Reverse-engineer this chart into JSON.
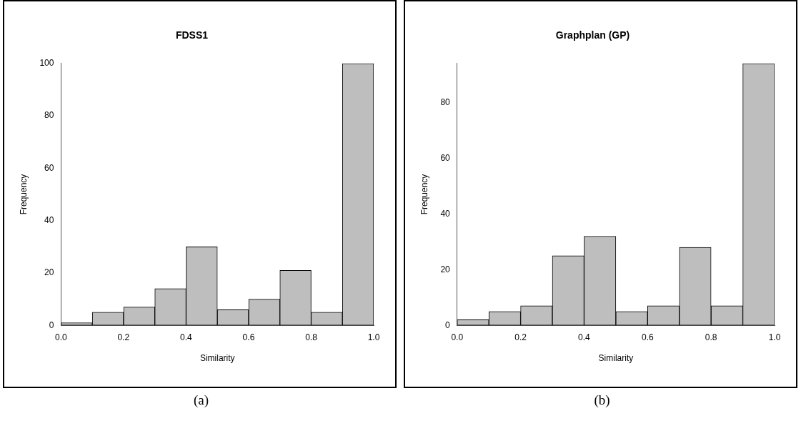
{
  "chart_data": [
    {
      "type": "histogram",
      "title": "FDSS1",
      "xlabel": "Similarity",
      "ylabel": "Frequency",
      "bins": [
        0,
        0.1,
        0.2,
        0.3,
        0.4,
        0.5,
        0.6,
        0.7,
        0.8,
        0.9,
        1.0
      ],
      "values": [
        1,
        5,
        7,
        14,
        30,
        6,
        10,
        21,
        5,
        100
      ],
      "color": "#bebebe",
      "xlim": [
        0,
        1
      ],
      "xticks": [
        {
          "value": 0,
          "label": "0.0"
        },
        {
          "value": 0.2,
          "label": "0.2"
        },
        {
          "value": 0.4,
          "label": "0.4"
        },
        {
          "value": 0.6,
          "label": "0.6"
        },
        {
          "value": 0.8,
          "label": "0.8"
        },
        {
          "value": 1,
          "label": "1.0"
        }
      ],
      "ylim": [
        0,
        100
      ],
      "yticks": [
        0,
        20,
        40,
        60,
        80,
        100
      ],
      "grid": false,
      "legend": false,
      "annotations": [
        "(a)"
      ]
    },
    {
      "type": "histogram",
      "title": "Graphplan (GP)",
      "xlabel": "Similarity",
      "ylabel": "Frequency",
      "bins": [
        0,
        0.1,
        0.2,
        0.3,
        0.4,
        0.5,
        0.6,
        0.7,
        0.8,
        0.9,
        1.0
      ],
      "values": [
        2,
        5,
        7,
        25,
        32,
        5,
        7,
        28,
        7,
        94
      ],
      "color": "#bebebe",
      "xlim": [
        0,
        1
      ],
      "xticks": [
        {
          "value": 0,
          "label": "0.0"
        },
        {
          "value": 0.2,
          "label": "0.2"
        },
        {
          "value": 0.4,
          "label": "0.4"
        },
        {
          "value": 0.6,
          "label": "0.6"
        },
        {
          "value": 0.8,
          "label": "0.8"
        },
        {
          "value": 1,
          "label": "1.0"
        }
      ],
      "ylim": [
        0,
        94
      ],
      "yticks": [
        0,
        20,
        40,
        60,
        80
      ],
      "grid": false,
      "legend": false,
      "annotations": [
        "(b)"
      ]
    }
  ]
}
